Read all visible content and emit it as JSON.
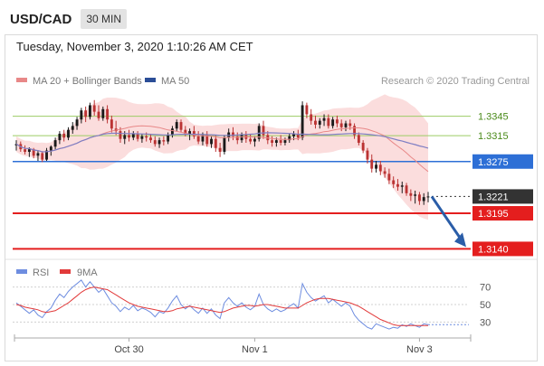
{
  "header": {
    "symbol": "USD/CAD",
    "timeframe": "30 MIN",
    "timestamp": "Tuesday, November 3, 2020 1:10:26 AM CET"
  },
  "legend": {
    "ma20_label": "MA 20 + Bollinger Bands",
    "ma50_label": "MA 50",
    "copyright": "Research © 2020 Trading Central",
    "rsi_label": "RSI",
    "rsi9_label": "9MA"
  },
  "colors": {
    "up": "#1a1a1a",
    "down": "#bb3333",
    "ma20": "#e88888",
    "ma50": "#7f7fc4",
    "band": "#f9d1d1",
    "green_level": "#9ccc65",
    "blue_level": "#2d6fd6",
    "red_level": "#e41e1e",
    "current": "#333333",
    "arrow": "#2a5da8",
    "rsi": "#6e8de0",
    "rsi9": "#e23a3a"
  },
  "chart_data": [
    {
      "type": "candlestick",
      "title": "USD/CAD 30 MIN",
      "x_ticks": [
        "Oct 30",
        "Nov 1",
        "Nov 3"
      ],
      "ylim": [
        1.3128,
        1.3385
      ],
      "levels": [
        {
          "value": 1.3345,
          "label": "1.3345",
          "kind": "resistance-green"
        },
        {
          "value": 1.3315,
          "label": "1.3315",
          "kind": "resistance-green"
        },
        {
          "value": 1.3275,
          "label": "1.3275",
          "kind": "pivot-blue"
        },
        {
          "value": 1.3221,
          "label": "1.3221",
          "kind": "current"
        },
        {
          "value": 1.3195,
          "label": "1.3195",
          "kind": "support-red"
        },
        {
          "value": 1.314,
          "label": "1.3140",
          "kind": "support-red"
        }
      ],
      "series": [
        {
          "name": "MA 20 + Bollinger Bands"
        },
        {
          "name": "MA 50"
        }
      ],
      "ohlc": [
        [
          1.33,
          1.3308,
          1.3292,
          1.3302
        ],
        [
          1.3302,
          1.3306,
          1.329,
          1.3294
        ],
        [
          1.3294,
          1.33,
          1.3286,
          1.329
        ],
        [
          1.329,
          1.3297,
          1.3282,
          1.3294
        ],
        [
          1.3294,
          1.3296,
          1.328,
          1.3284
        ],
        [
          1.3284,
          1.3292,
          1.3276,
          1.3288
        ],
        [
          1.3288,
          1.3291,
          1.3274,
          1.3278
        ],
        [
          1.3278,
          1.3296,
          1.3276,
          1.3292
        ],
        [
          1.3292,
          1.33,
          1.3284,
          1.3298
        ],
        [
          1.3298,
          1.3312,
          1.3294,
          1.3308
        ],
        [
          1.3308,
          1.3322,
          1.3302,
          1.3318
        ],
        [
          1.3318,
          1.3324,
          1.3306,
          1.3312
        ],
        [
          1.3312,
          1.3328,
          1.3308,
          1.3324
        ],
        [
          1.3324,
          1.3336,
          1.3318,
          1.333
        ],
        [
          1.333,
          1.3344,
          1.3324,
          1.334
        ],
        [
          1.334,
          1.3358,
          1.3334,
          1.3354
        ],
        [
          1.3354,
          1.336,
          1.3336,
          1.3344
        ],
        [
          1.3344,
          1.3366,
          1.334,
          1.3362
        ],
        [
          1.3362,
          1.337,
          1.3346,
          1.3352
        ],
        [
          1.3352,
          1.3362,
          1.3338,
          1.3342
        ],
        [
          1.3342,
          1.336,
          1.3338,
          1.3356
        ],
        [
          1.3356,
          1.3362,
          1.3334,
          1.334
        ],
        [
          1.334,
          1.3346,
          1.332,
          1.3326
        ],
        [
          1.3326,
          1.3338,
          1.3316,
          1.3322
        ],
        [
          1.3322,
          1.3328,
          1.3304,
          1.331
        ],
        [
          1.331,
          1.3322,
          1.3302,
          1.3316
        ],
        [
          1.3316,
          1.3324,
          1.3306,
          1.3312
        ],
        [
          1.3312,
          1.3322,
          1.3308,
          1.3318
        ],
        [
          1.3318,
          1.3322,
          1.3306,
          1.331
        ],
        [
          1.331,
          1.3318,
          1.3304,
          1.3314
        ],
        [
          1.3314,
          1.332,
          1.3306,
          1.3312
        ],
        [
          1.3312,
          1.3318,
          1.3304,
          1.3308
        ],
        [
          1.3308,
          1.3314,
          1.3298,
          1.3302
        ],
        [
          1.3302,
          1.3312,
          1.3296,
          1.3308
        ],
        [
          1.3308,
          1.3314,
          1.33,
          1.3306
        ],
        [
          1.3306,
          1.332,
          1.3302,
          1.3316
        ],
        [
          1.3316,
          1.333,
          1.3312,
          1.3326
        ],
        [
          1.3326,
          1.334,
          1.3322,
          1.3336
        ],
        [
          1.3336,
          1.334,
          1.332,
          1.3324
        ],
        [
          1.3324,
          1.333,
          1.3314,
          1.3318
        ],
        [
          1.3318,
          1.3326,
          1.3308,
          1.3322
        ],
        [
          1.3322,
          1.333,
          1.331,
          1.3314
        ],
        [
          1.3314,
          1.3322,
          1.3302,
          1.3306
        ],
        [
          1.3306,
          1.332,
          1.33,
          1.3316
        ],
        [
          1.3316,
          1.3322,
          1.3298,
          1.3302
        ],
        [
          1.3302,
          1.3314,
          1.3296,
          1.331
        ],
        [
          1.331,
          1.3316,
          1.329,
          1.3296
        ],
        [
          1.3296,
          1.3304,
          1.3282,
          1.329
        ],
        [
          1.329,
          1.3316,
          1.3286,
          1.3312
        ],
        [
          1.3312,
          1.3326,
          1.3306,
          1.332
        ],
        [
          1.332,
          1.3328,
          1.3308,
          1.3314
        ],
        [
          1.3314,
          1.332,
          1.3302,
          1.3308
        ],
        [
          1.3308,
          1.332,
          1.3304,
          1.3316
        ],
        [
          1.3316,
          1.3322,
          1.3304,
          1.331
        ],
        [
          1.331,
          1.3318,
          1.3302,
          1.3306
        ],
        [
          1.3306,
          1.3314,
          1.3298,
          1.331
        ],
        [
          1.331,
          1.3334,
          1.3306,
          1.333
        ],
        [
          1.333,
          1.3338,
          1.331,
          1.3316
        ],
        [
          1.3316,
          1.3322,
          1.3302,
          1.3308
        ],
        [
          1.3308,
          1.3314,
          1.3298,
          1.3304
        ],
        [
          1.3304,
          1.3312,
          1.3298,
          1.3308
        ],
        [
          1.3308,
          1.3316,
          1.33,
          1.3304
        ],
        [
          1.3304,
          1.3312,
          1.33,
          1.3308
        ],
        [
          1.3308,
          1.3318,
          1.3304,
          1.3314
        ],
        [
          1.3314,
          1.3322,
          1.3308,
          1.3318
        ],
        [
          1.3318,
          1.3324,
          1.3308,
          1.3312
        ],
        [
          1.3312,
          1.3368,
          1.3308,
          1.3362
        ],
        [
          1.3362,
          1.3366,
          1.3342,
          1.3348
        ],
        [
          1.3348,
          1.3356,
          1.3332,
          1.3338
        ],
        [
          1.3338,
          1.3346,
          1.3326,
          1.3332
        ],
        [
          1.3332,
          1.3342,
          1.3326,
          1.3338
        ],
        [
          1.3338,
          1.3348,
          1.333,
          1.3342
        ],
        [
          1.3342,
          1.3348,
          1.3326,
          1.333
        ],
        [
          1.333,
          1.3344,
          1.3326,
          1.334
        ],
        [
          1.334,
          1.3346,
          1.3328,
          1.3334
        ],
        [
          1.3334,
          1.334,
          1.3322,
          1.3328
        ],
        [
          1.3328,
          1.3338,
          1.3322,
          1.3334
        ],
        [
          1.3334,
          1.334,
          1.3324,
          1.333
        ],
        [
          1.333,
          1.3334,
          1.331,
          1.3316
        ],
        [
          1.3316,
          1.332,
          1.33,
          1.3304
        ],
        [
          1.3304,
          1.3308,
          1.3288,
          1.3292
        ],
        [
          1.3292,
          1.3296,
          1.3272,
          1.3278
        ],
        [
          1.3278,
          1.3286,
          1.3258,
          1.3264
        ],
        [
          1.3264,
          1.3276,
          1.3258,
          1.327
        ],
        [
          1.327,
          1.3276,
          1.3254,
          1.326
        ],
        [
          1.326,
          1.3266,
          1.325,
          1.3256
        ],
        [
          1.3256,
          1.3264,
          1.324,
          1.3246
        ],
        [
          1.3246,
          1.3252,
          1.3234,
          1.324
        ],
        [
          1.324,
          1.3248,
          1.323,
          1.3236
        ],
        [
          1.3236,
          1.3244,
          1.3226,
          1.3238
        ],
        [
          1.3238,
          1.3242,
          1.3222,
          1.3226
        ],
        [
          1.3226,
          1.3232,
          1.3214,
          1.3222
        ],
        [
          1.3222,
          1.323,
          1.321,
          1.3224
        ],
        [
          1.3224,
          1.3228,
          1.3208,
          1.3214
        ],
        [
          1.3214,
          1.3226,
          1.3208,
          1.322
        ],
        [
          1.322,
          1.3228,
          1.3212,
          1.3221
        ]
      ]
    },
    {
      "type": "line",
      "title": "RSI",
      "y_ticks": [
        70,
        50,
        30
      ],
      "ylim": [
        18,
        82
      ],
      "series": [
        {
          "name": "RSI",
          "values": [
            52,
            48,
            44,
            40,
            44,
            38,
            35,
            42,
            46,
            55,
            62,
            58,
            65,
            70,
            74,
            78,
            70,
            76,
            70,
            64,
            68,
            60,
            52,
            48,
            42,
            47,
            44,
            49,
            43,
            46,
            44,
            41,
            36,
            42,
            40,
            46,
            54,
            60,
            50,
            45,
            49,
            44,
            40,
            46,
            40,
            45,
            38,
            34,
            52,
            58,
            52,
            48,
            52,
            47,
            44,
            48,
            62,
            50,
            45,
            42,
            45,
            42,
            44,
            48,
            51,
            46,
            74,
            64,
            58,
            54,
            57,
            60,
            52,
            56,
            52,
            48,
            52,
            48,
            38,
            32,
            28,
            24,
            22,
            28,
            26,
            24,
            22,
            24,
            23,
            27,
            25,
            28,
            26,
            24,
            28,
            27
          ]
        },
        {
          "name": "9MA",
          "values": [
            50,
            49,
            47,
            46,
            45,
            44,
            42,
            41,
            42,
            43,
            46,
            49,
            52,
            56,
            60,
            64,
            67,
            69,
            70,
            69,
            68,
            67,
            64,
            61,
            58,
            55,
            52,
            50,
            48,
            47,
            46,
            45,
            44,
            43,
            42,
            42,
            43,
            45,
            46,
            47,
            48,
            47,
            46,
            45,
            44,
            43,
            42,
            41,
            42,
            44,
            46,
            47,
            48,
            49,
            49,
            48,
            49,
            50,
            50,
            49,
            48,
            47,
            46,
            46,
            46,
            46,
            49,
            52,
            54,
            56,
            57,
            57,
            57,
            56,
            55,
            54,
            53,
            52,
            50,
            48,
            45,
            42,
            39,
            36,
            33,
            31,
            29,
            27,
            26,
            26,
            26,
            26,
            26,
            26,
            26,
            26
          ]
        }
      ]
    }
  ]
}
